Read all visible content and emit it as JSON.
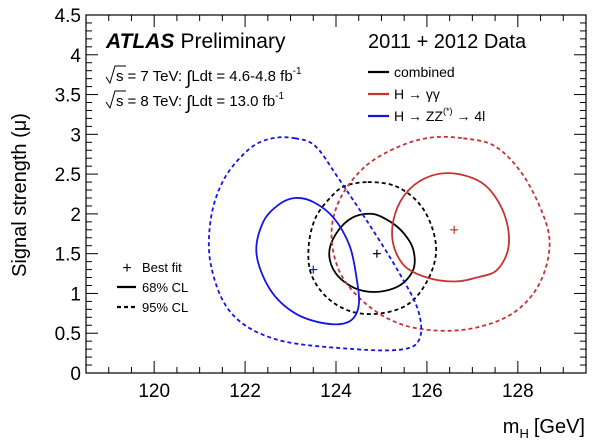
{
  "chart_data": {
    "type": "contour",
    "title": "2011 + 2012 Data",
    "experiment": "ATLAS",
    "experiment_suffix": "Preliminary",
    "xlabel_main": "m",
    "xlabel_sub": "H",
    "xlabel_unit": "[GeV]",
    "ylabel": "Signal strength (μ)",
    "xlim": [
      118.5,
      129.5
    ],
    "ylim": [
      0,
      4.5
    ],
    "x_ticks": [
      120,
      122,
      124,
      126,
      128
    ],
    "x_tick_labels": [
      "120",
      "122",
      "124",
      "126",
      "128"
    ],
    "y_ticks": [
      0,
      0.5,
      1,
      1.5,
      2,
      2.5,
      3,
      3.5,
      4,
      4.5
    ],
    "y_tick_labels": [
      "0",
      "0.5",
      "1",
      "1.5",
      "2",
      "2.5",
      "3",
      "3.5",
      "4",
      "4.5"
    ],
    "lumi_lines": [
      {
        "sqrt_label": "s",
        "energy": "= 7 TeV:",
        "integral": "∫",
        "lumi": "Ldt = 4.6-4.8 fb",
        "exp": "-1"
      },
      {
        "sqrt_label": "s",
        "energy": "= 8 TeV:",
        "integral": "∫",
        "lumi": "Ldt = 13.0 fb",
        "exp": "-1"
      }
    ],
    "series": [
      {
        "name": "combined",
        "legend_label": "combined",
        "color": "#000000",
        "best_fit": [
          124.9,
          1.5
        ],
        "cl68": [
          [
            124.8,
            2.0
          ],
          [
            125.2,
            1.9
          ],
          [
            125.5,
            1.75
          ],
          [
            125.7,
            1.55
          ],
          [
            125.7,
            1.3
          ],
          [
            125.4,
            1.1
          ],
          [
            124.9,
            1.02
          ],
          [
            124.4,
            1.07
          ],
          [
            124.0,
            1.25
          ],
          [
            123.85,
            1.5
          ],
          [
            124.0,
            1.75
          ],
          [
            124.35,
            1.95
          ]
        ],
        "cl95": [
          [
            124.7,
            2.4
          ],
          [
            125.3,
            2.35
          ],
          [
            125.8,
            2.15
          ],
          [
            126.1,
            1.85
          ],
          [
            126.2,
            1.5
          ],
          [
            126.0,
            1.15
          ],
          [
            125.6,
            0.87
          ],
          [
            125.0,
            0.75
          ],
          [
            124.35,
            0.77
          ],
          [
            123.8,
            0.95
          ],
          [
            123.45,
            1.25
          ],
          [
            123.4,
            1.6
          ],
          [
            123.55,
            1.95
          ],
          [
            123.9,
            2.22
          ],
          [
            124.2,
            2.35
          ]
        ]
      },
      {
        "name": "H→γγ",
        "legend_label": "H → γγ",
        "color": "#c83232",
        "best_fit": [
          126.6,
          1.8
        ],
        "cl68": [
          [
            126.7,
            2.5
          ],
          [
            127.3,
            2.35
          ],
          [
            127.7,
            2.0
          ],
          [
            127.8,
            1.6
          ],
          [
            127.55,
            1.3
          ],
          [
            127.1,
            1.2
          ],
          [
            126.6,
            1.15
          ],
          [
            126.0,
            1.2
          ],
          [
            125.5,
            1.35
          ],
          [
            125.25,
            1.65
          ],
          [
            125.3,
            2.0
          ],
          [
            125.6,
            2.3
          ],
          [
            126.1,
            2.48
          ]
        ],
        "cl95": [
          [
            126.8,
            2.95
          ],
          [
            127.5,
            2.85
          ],
          [
            128.1,
            2.5
          ],
          [
            128.55,
            2.0
          ],
          [
            128.7,
            1.6
          ],
          [
            128.5,
            1.15
          ],
          [
            128.05,
            0.82
          ],
          [
            127.4,
            0.62
          ],
          [
            126.5,
            0.53
          ],
          [
            125.5,
            0.6
          ],
          [
            124.7,
            0.85
          ],
          [
            124.1,
            1.25
          ],
          [
            123.9,
            1.75
          ],
          [
            124.1,
            2.2
          ],
          [
            124.65,
            2.6
          ],
          [
            125.4,
            2.85
          ],
          [
            126.1,
            2.96
          ]
        ]
      },
      {
        "name": "H→ZZ(*)→4l",
        "legend_label": "H → ZZ",
        "legend_sup": "(*)",
        "legend_suffix": "→ 4l",
        "color": "#1414e6",
        "best_fit": [
          123.5,
          1.3
        ],
        "cl68": [
          [
            123.1,
            2.2
          ],
          [
            123.5,
            2.15
          ],
          [
            123.95,
            1.95
          ],
          [
            124.3,
            1.6
          ],
          [
            124.45,
            1.2
          ],
          [
            124.5,
            0.85
          ],
          [
            124.3,
            0.65
          ],
          [
            123.8,
            0.62
          ],
          [
            123.1,
            0.75
          ],
          [
            122.55,
            1.05
          ],
          [
            122.25,
            1.5
          ],
          [
            122.4,
            1.9
          ],
          [
            122.75,
            2.12
          ]
        ],
        "cl95": [
          [
            123.1,
            2.95
          ],
          [
            123.55,
            2.85
          ],
          [
            124.05,
            2.45
          ],
          [
            124.75,
            1.85
          ],
          [
            125.4,
            1.25
          ],
          [
            125.8,
            0.8
          ],
          [
            125.85,
            0.45
          ],
          [
            125.5,
            0.3
          ],
          [
            124.4,
            0.3
          ],
          [
            122.7,
            0.42
          ],
          [
            121.7,
            0.75
          ],
          [
            121.25,
            1.35
          ],
          [
            121.25,
            1.95
          ],
          [
            121.55,
            2.45
          ],
          [
            122.1,
            2.82
          ],
          [
            122.6,
            2.95
          ]
        ]
      }
    ],
    "legend_extra": [
      {
        "name": "Best fit",
        "symbol": "+"
      },
      {
        "name": "68% CL",
        "style": "solid"
      },
      {
        "name": "95% CL",
        "style": "dashed"
      }
    ]
  }
}
